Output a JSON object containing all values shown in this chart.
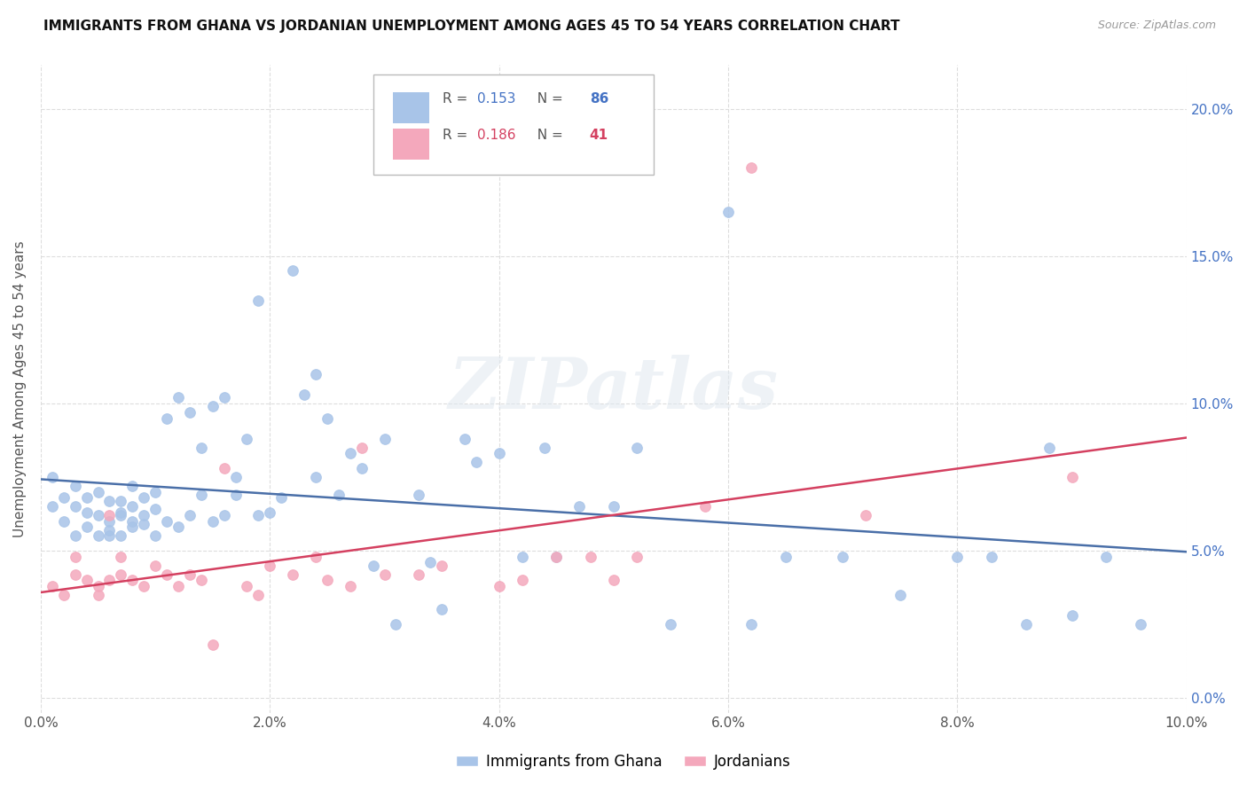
{
  "title": "IMMIGRANTS FROM GHANA VS JORDANIAN UNEMPLOYMENT AMONG AGES 45 TO 54 YEARS CORRELATION CHART",
  "source": "Source: ZipAtlas.com",
  "ylabel": "Unemployment Among Ages 45 to 54 years",
  "xlim": [
    0.0,
    0.1
  ],
  "ylim": [
    -0.005,
    0.215
  ],
  "xticks": [
    0.0,
    0.02,
    0.04,
    0.06,
    0.08,
    0.1
  ],
  "yticks": [
    0.0,
    0.05,
    0.1,
    0.15,
    0.2
  ],
  "ytick_labels_right": [
    "0.0%",
    "5.0%",
    "10.0%",
    "15.0%",
    "20.0%"
  ],
  "xtick_labels": [
    "0.0%",
    "2.0%",
    "4.0%",
    "6.0%",
    "8.0%",
    "10.0%"
  ],
  "ghana_color": "#a8c4e8",
  "jordan_color": "#f4a8bc",
  "ghana_line_color": "#4a6fa8",
  "jordan_line_color": "#d44060",
  "ghana_R": 0.153,
  "ghana_N": 86,
  "jordan_R": 0.186,
  "jordan_N": 41,
  "ghana_scatter_x": [
    0.001,
    0.001,
    0.002,
    0.002,
    0.003,
    0.003,
    0.003,
    0.004,
    0.004,
    0.004,
    0.005,
    0.005,
    0.005,
    0.006,
    0.006,
    0.006,
    0.006,
    0.007,
    0.007,
    0.007,
    0.007,
    0.008,
    0.008,
    0.008,
    0.008,
    0.009,
    0.009,
    0.009,
    0.01,
    0.01,
    0.01,
    0.011,
    0.011,
    0.012,
    0.012,
    0.013,
    0.013,
    0.014,
    0.014,
    0.015,
    0.015,
    0.016,
    0.016,
    0.017,
    0.017,
    0.018,
    0.019,
    0.019,
    0.02,
    0.021,
    0.022,
    0.023,
    0.024,
    0.024,
    0.025,
    0.026,
    0.027,
    0.028,
    0.029,
    0.03,
    0.031,
    0.033,
    0.034,
    0.035,
    0.037,
    0.038,
    0.04,
    0.042,
    0.044,
    0.045,
    0.047,
    0.05,
    0.052,
    0.055,
    0.06,
    0.062,
    0.065,
    0.07,
    0.075,
    0.08,
    0.083,
    0.086,
    0.088,
    0.09,
    0.093,
    0.096
  ],
  "ghana_scatter_y": [
    0.065,
    0.075,
    0.06,
    0.068,
    0.055,
    0.065,
    0.072,
    0.058,
    0.068,
    0.063,
    0.055,
    0.07,
    0.062,
    0.055,
    0.06,
    0.067,
    0.057,
    0.062,
    0.067,
    0.055,
    0.063,
    0.06,
    0.065,
    0.058,
    0.072,
    0.059,
    0.068,
    0.062,
    0.064,
    0.055,
    0.07,
    0.06,
    0.095,
    0.058,
    0.102,
    0.062,
    0.097,
    0.069,
    0.085,
    0.06,
    0.099,
    0.062,
    0.102,
    0.075,
    0.069,
    0.088,
    0.062,
    0.135,
    0.063,
    0.068,
    0.145,
    0.103,
    0.075,
    0.11,
    0.095,
    0.069,
    0.083,
    0.078,
    0.045,
    0.088,
    0.025,
    0.069,
    0.046,
    0.03,
    0.088,
    0.08,
    0.083,
    0.048,
    0.085,
    0.048,
    0.065,
    0.065,
    0.085,
    0.025,
    0.165,
    0.025,
    0.048,
    0.048,
    0.035,
    0.048,
    0.048,
    0.025,
    0.085,
    0.028,
    0.048,
    0.025
  ],
  "jordan_scatter_x": [
    0.001,
    0.002,
    0.003,
    0.003,
    0.004,
    0.005,
    0.005,
    0.006,
    0.006,
    0.007,
    0.007,
    0.008,
    0.009,
    0.01,
    0.011,
    0.012,
    0.013,
    0.014,
    0.015,
    0.016,
    0.018,
    0.019,
    0.02,
    0.022,
    0.024,
    0.025,
    0.027,
    0.028,
    0.03,
    0.033,
    0.035,
    0.04,
    0.042,
    0.045,
    0.048,
    0.05,
    0.052,
    0.058,
    0.062,
    0.072,
    0.09
  ],
  "jordan_scatter_y": [
    0.038,
    0.035,
    0.042,
    0.048,
    0.04,
    0.038,
    0.035,
    0.04,
    0.062,
    0.042,
    0.048,
    0.04,
    0.038,
    0.045,
    0.042,
    0.038,
    0.042,
    0.04,
    0.018,
    0.078,
    0.038,
    0.035,
    0.045,
    0.042,
    0.048,
    0.04,
    0.038,
    0.085,
    0.042,
    0.042,
    0.045,
    0.038,
    0.04,
    0.048,
    0.048,
    0.04,
    0.048,
    0.065,
    0.18,
    0.062,
    0.075
  ],
  "watermark": "ZIPatlas",
  "background_color": "#ffffff",
  "grid_color": "#dddddd"
}
